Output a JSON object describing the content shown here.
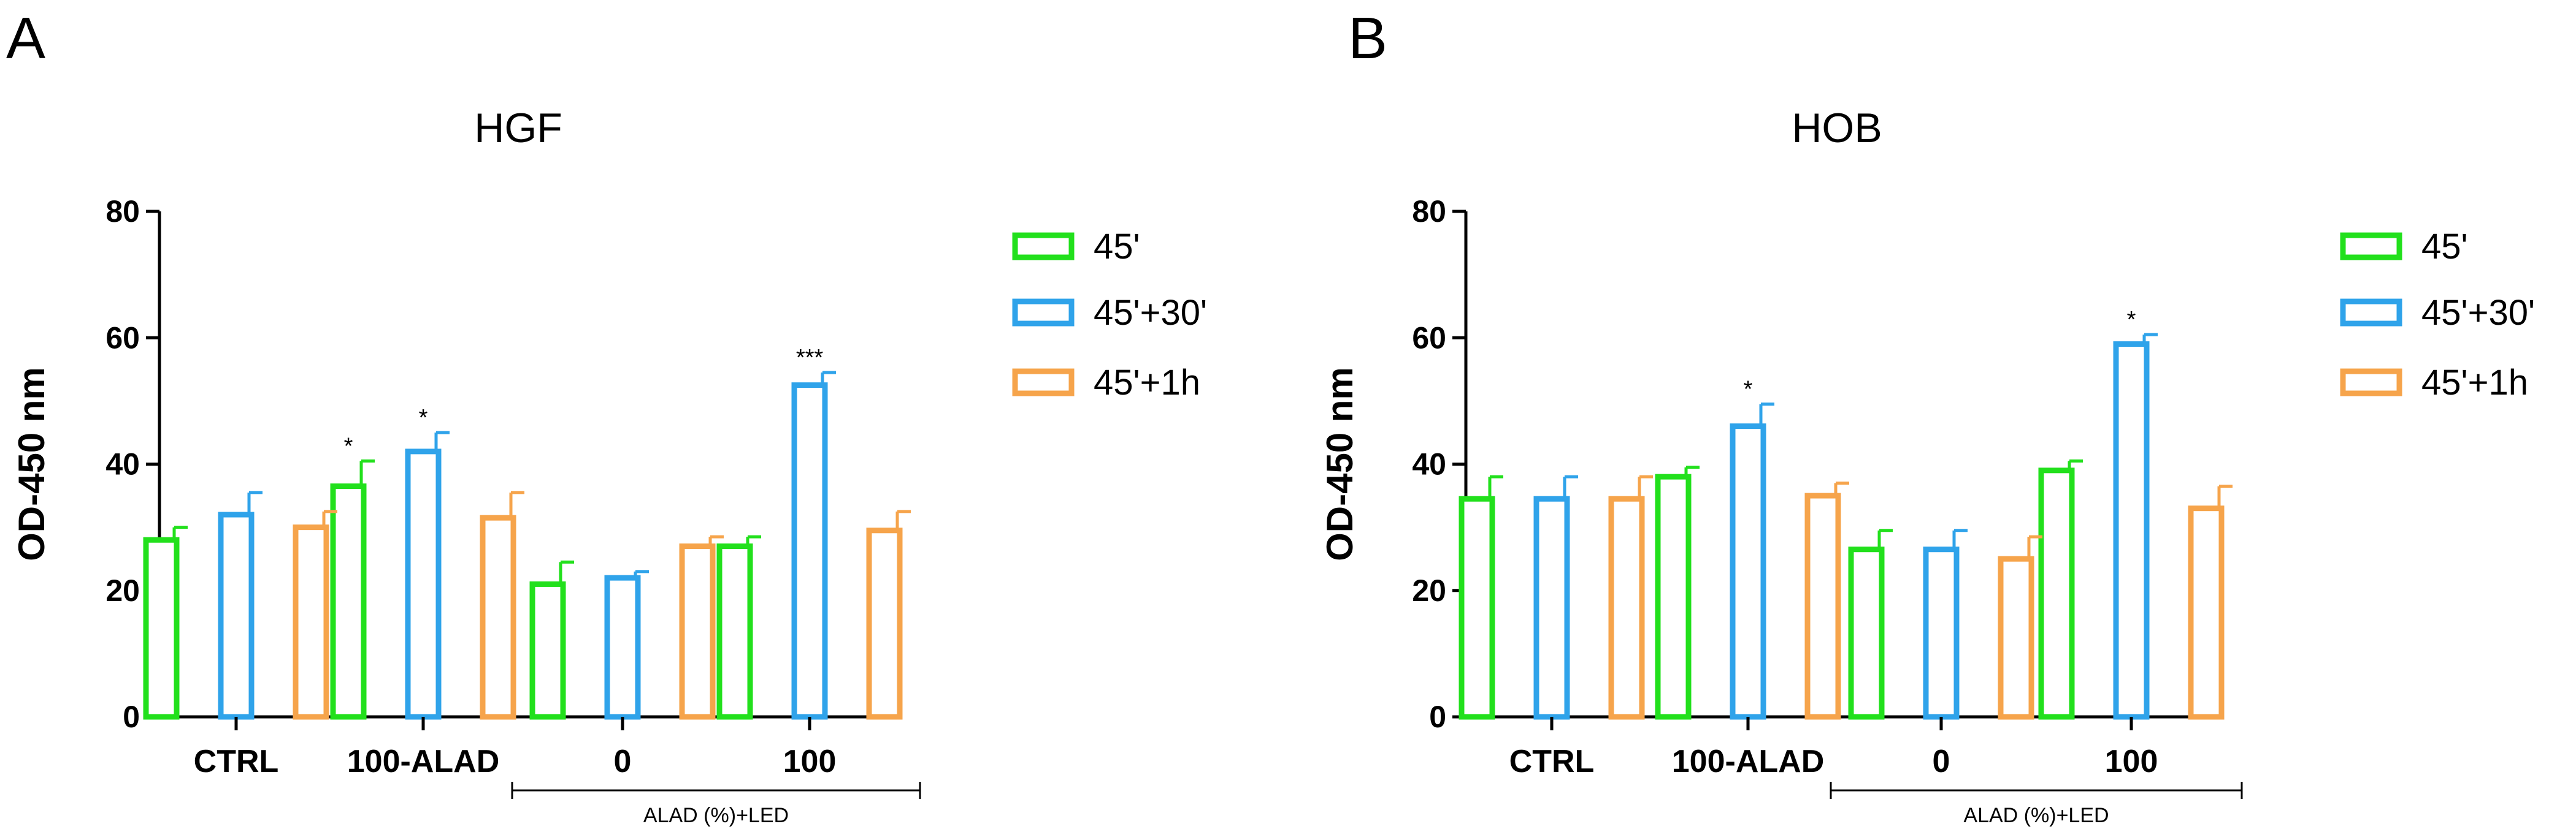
{
  "colors": {
    "45'": "#22e01c",
    "45'+30'": "#2fa3ea",
    "45'+1h": "#f6a44b",
    "axis": "#000000"
  },
  "chart_data": [
    {
      "panel": "A",
      "type": "bar",
      "title": "HGF",
      "ylabel": "OD-450 nm",
      "ylim": [
        0,
        80
      ],
      "yticks": [
        0,
        20,
        40,
        60,
        80
      ],
      "categories": [
        "CTRL",
        "100-ALAD",
        "0",
        "100"
      ],
      "group_label": "ALAD (%)+LED",
      "legend_position": "right",
      "series": [
        {
          "name": "45'",
          "color": "#22e01c",
          "values": [
            28,
            36.5,
            21,
            27
          ],
          "errors": [
            2,
            4,
            3.5,
            1.5
          ],
          "stars": [
            "",
            "*",
            "",
            ""
          ]
        },
        {
          "name": "45'+30'",
          "color": "#2fa3ea",
          "values": [
            32,
            42,
            22,
            52.5
          ],
          "errors": [
            3.5,
            3,
            1,
            2
          ],
          "stars": [
            "",
            "*",
            "",
            "***"
          ]
        },
        {
          "name": "45'+1h",
          "color": "#f6a44b",
          "values": [
            30,
            31.5,
            27,
            29.5
          ],
          "errors": [
            2.5,
            4,
            1.5,
            3
          ],
          "stars": [
            "",
            "",
            "",
            ""
          ]
        }
      ]
    },
    {
      "panel": "B",
      "type": "bar",
      "title": "HOB",
      "ylabel": "OD-450 nm",
      "ylim": [
        0,
        80
      ],
      "yticks": [
        0,
        20,
        40,
        60,
        80
      ],
      "categories": [
        "CTRL",
        "100-ALAD",
        "0",
        "100"
      ],
      "group_label": "ALAD (%)+LED",
      "legend_position": "right",
      "series": [
        {
          "name": "45'",
          "color": "#22e01c",
          "values": [
            34.5,
            38,
            26.5,
            39
          ],
          "errors": [
            3.5,
            1.5,
            3,
            1.5
          ],
          "stars": [
            "",
            "",
            "",
            ""
          ]
        },
        {
          "name": "45'+30'",
          "color": "#2fa3ea",
          "values": [
            34.5,
            46,
            26.5,
            59
          ],
          "errors": [
            3.5,
            3.5,
            3,
            1.5
          ],
          "stars": [
            "",
            "*",
            "",
            "*"
          ]
        },
        {
          "name": "45'+1h",
          "color": "#f6a44b",
          "values": [
            34.5,
            35,
            25,
            33
          ],
          "errors": [
            3.5,
            2,
            3.5,
            3.5
          ],
          "stars": [
            "",
            "",
            "",
            ""
          ]
        }
      ]
    }
  ]
}
